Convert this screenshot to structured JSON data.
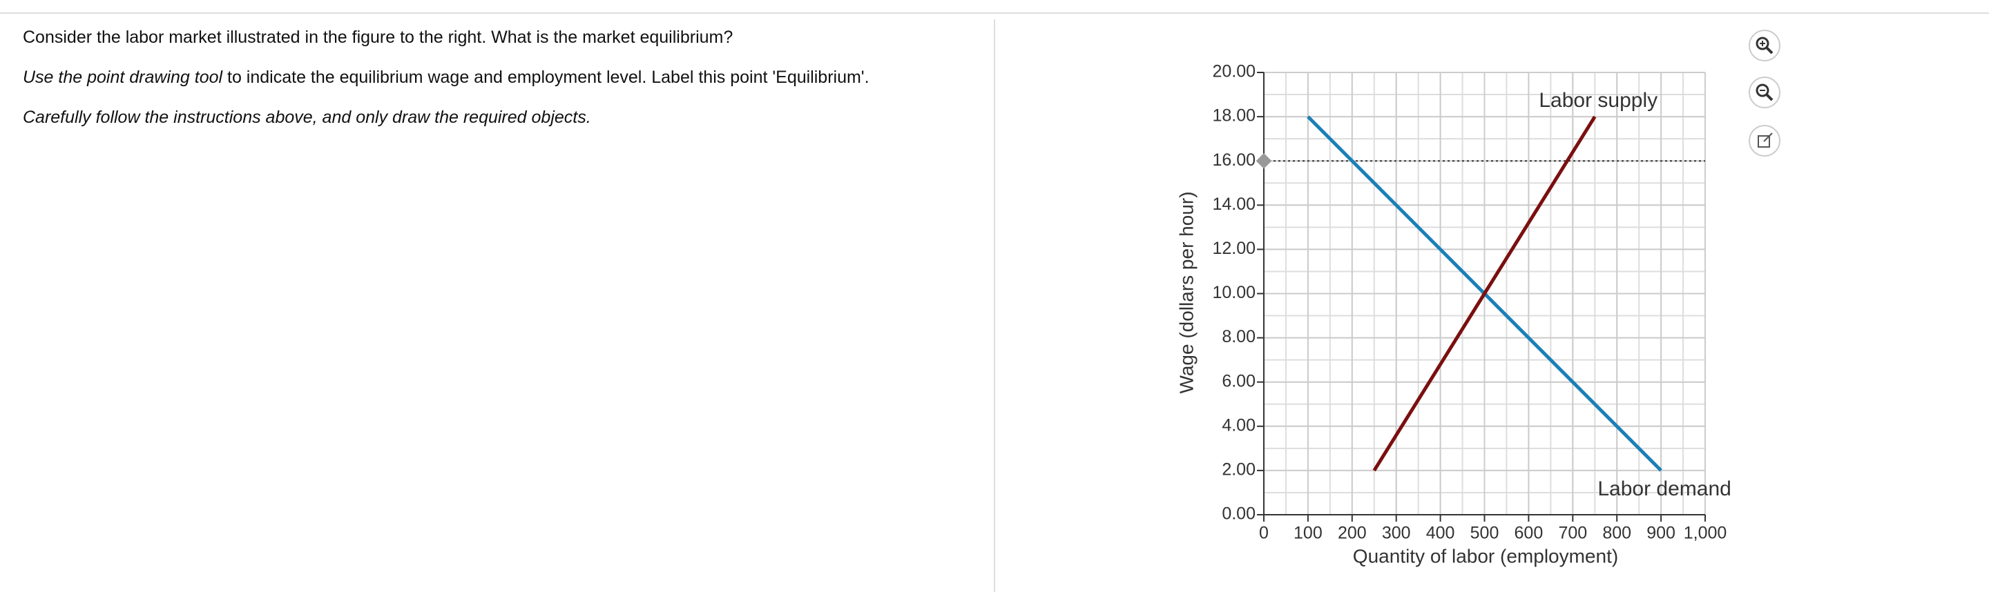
{
  "question": {
    "prompt": "Consider the labor market illustrated in the figure to the right. What is the market equilibrium?",
    "instruction_italic": "Use the point drawing tool",
    "instruction_rest": "to indicate the equilibrium wage and employment level. Label this point 'Equilibrium'.",
    "note": "Carefully follow the instructions above, and only draw the required objects."
  },
  "chart_data": {
    "type": "line",
    "xlabel": "Quantity of labor (employment)",
    "ylabel": "Wage (dollars per hour)",
    "xlim": [
      0,
      1000
    ],
    "ylim": [
      0,
      20
    ],
    "xticks": [
      0,
      100,
      200,
      300,
      400,
      500,
      600,
      700,
      800,
      900,
      {
        "value": 1000,
        "label": "1,000"
      }
    ],
    "yticks": [
      {
        "value": 0,
        "label": "0.00"
      },
      {
        "value": 2,
        "label": "2.00"
      },
      {
        "value": 4,
        "label": "4.00"
      },
      {
        "value": 6,
        "label": "6.00"
      },
      {
        "value": 8,
        "label": "8.00"
      },
      {
        "value": 10,
        "label": "10.00"
      },
      {
        "value": 12,
        "label": "12.00"
      },
      {
        "value": 14,
        "label": "14.00"
      },
      {
        "value": 16,
        "label": "16.00"
      },
      {
        "value": 18,
        "label": "18.00"
      },
      {
        "value": 20,
        "label": "20.00"
      }
    ],
    "grid": true,
    "reference_line": {
      "y": 16,
      "color": "#999999"
    },
    "series": [
      {
        "name": "Labor demand",
        "color": "#1a7fb8",
        "x": [
          100,
          900
        ],
        "values": [
          18,
          2
        ]
      },
      {
        "name": "Labor supply",
        "color": "#7a0f0f",
        "x": [
          250,
          750
        ],
        "values": [
          2,
          18
        ]
      }
    ]
  }
}
